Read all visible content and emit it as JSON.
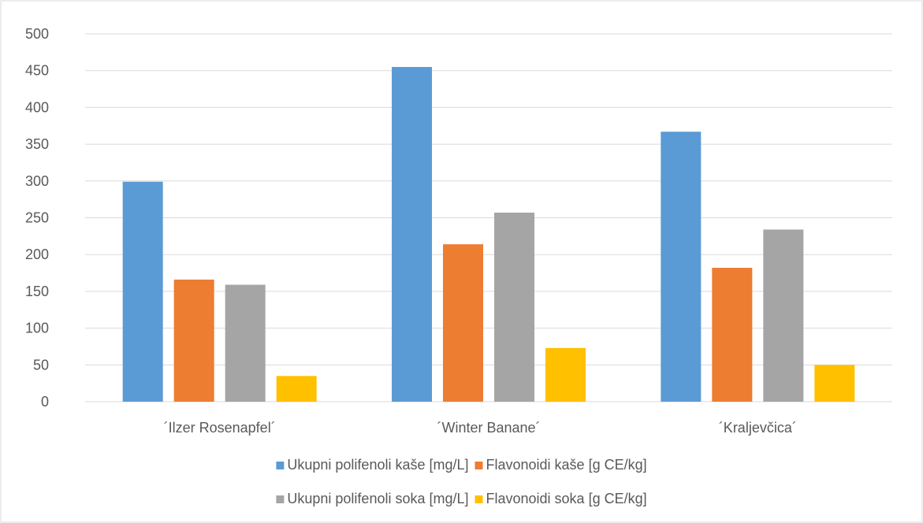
{
  "chart_data": {
    "type": "bar",
    "categories": [
      "´Ilzer Rosenapfel´",
      "´Winter Banane´",
      "´Kraljevčica´"
    ],
    "series": [
      {
        "name": "Ukupni polifenoli kaše [mg/L]",
        "values": [
          299,
          455,
          367
        ],
        "color": "#5B9BD5"
      },
      {
        "name": "Flavonoidi kaše  [g CE/kg]",
        "values": [
          166,
          214,
          182
        ],
        "color": "#ED7D31"
      },
      {
        "name": "Ukupni polifenoli soka  [mg/L]",
        "values": [
          159,
          257,
          234
        ],
        "color": "#A5A5A5"
      },
      {
        "name": "Flavonoidi soka [g CE/kg]",
        "values": [
          35,
          73,
          50
        ],
        "color": "#FFC000"
      }
    ],
    "yticks": [
      0,
      50,
      100,
      150,
      200,
      250,
      300,
      350,
      400,
      450,
      500
    ],
    "ylim": [
      0,
      500
    ],
    "grid": true,
    "legend_position": "bottom",
    "title": "",
    "xlabel": "",
    "ylabel": ""
  }
}
